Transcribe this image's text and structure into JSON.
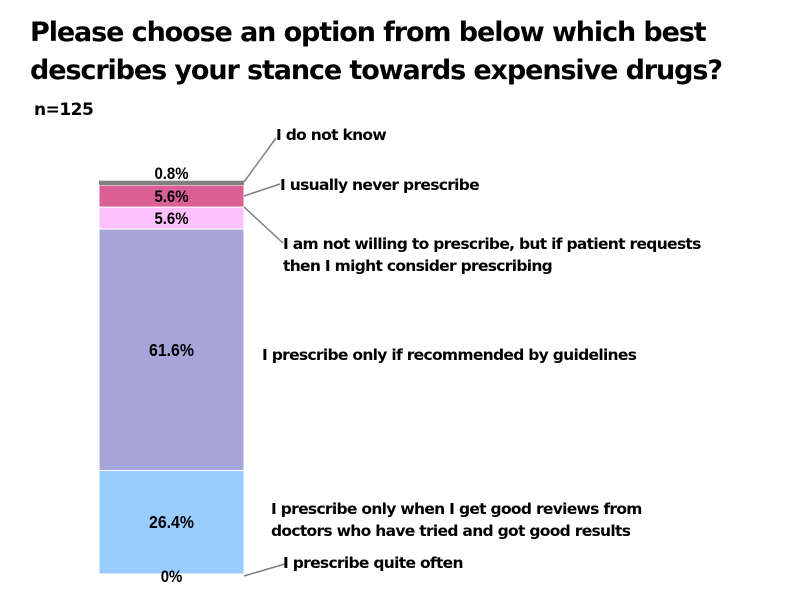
{
  "title_lines": [
    "Please choose an option from below which best",
    "describes your stance towards expensive drugs?"
  ],
  "sample_size": "n=125",
  "chart_data": {
    "type": "bar",
    "subtype": "100% stacked single column",
    "title": "Please choose an option from below which best describes your stance towards expensive drugs?",
    "note": "n=125",
    "xlabel": "",
    "ylabel": "",
    "ylim": [
      0,
      100
    ],
    "grid": false,
    "legend": "labels to the right of bar",
    "series": [
      {
        "name": "I prescribe quite often",
        "value": 0,
        "label": "0%",
        "color": "#ffffff"
      },
      {
        "name": "I prescribe only when I get good reviews from doctors who have tried and got good results",
        "value": 26.4,
        "label": "26.4%",
        "color": "#99ccff"
      },
      {
        "name": "I prescribe only if recommended by guidelines",
        "value": 61.6,
        "label": "61.6%",
        "color": "#a5a5d9"
      },
      {
        "name": "I am not willing to prescribe, but if patient requests then I might consider prescribing",
        "value": 5.6,
        "label": "5.6%",
        "color": "#ffc0ff"
      },
      {
        "name": "I usually never prescribe",
        "value": 5.6,
        "label": "5.6%",
        "color": "#d95f95"
      },
      {
        "name": "I do not know",
        "value": 0.8,
        "label": "0.8%",
        "color": "#808080"
      }
    ]
  },
  "category_labels": [
    [
      "I prescribe quite often"
    ],
    [
      "I prescribe only when I get good reviews from",
      "doctors who have tried and got good results"
    ],
    [
      "I prescribe only if recommended by guidelines"
    ],
    [
      "I am not willing to prescribe, but if patient requests",
      "then I might consider prescribing"
    ],
    [
      "I usually never prescribe"
    ],
    [
      "I do not know"
    ]
  ]
}
